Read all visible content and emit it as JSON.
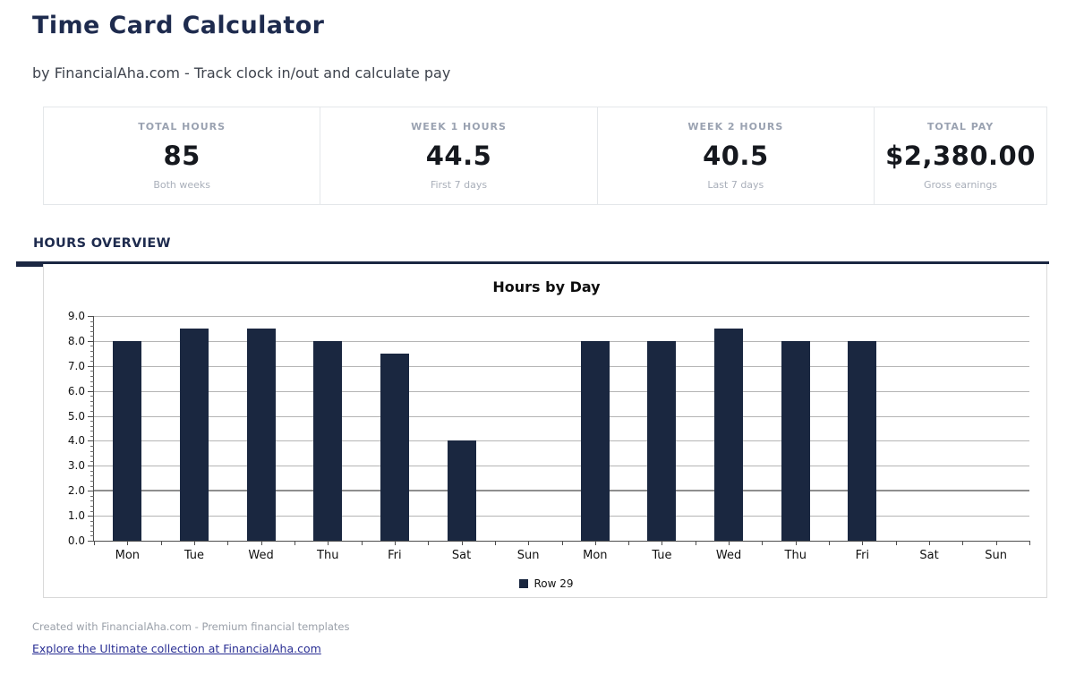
{
  "page": {
    "title": "Time Card Calculator",
    "subtitle": "by FinancialAha.com - Track clock in/out and calculate pay",
    "section_title": "HOURS OVERVIEW",
    "footer_note": "Created with FinancialAha.com - Premium financial templates",
    "footer_link": "Explore the Ultimate collection at FinancialAha.com"
  },
  "stats": [
    {
      "label": "TOTAL HOURS",
      "value": "85",
      "sub": "Both weeks"
    },
    {
      "label": "WEEK 1 HOURS",
      "value": "44.5",
      "sub": "First 7 days"
    },
    {
      "label": "WEEK 2 HOURS",
      "value": "40.5",
      "sub": "Last 7 days"
    },
    {
      "label": "TOTAL PAY",
      "value": "$2,380.00",
      "sub": "Gross earnings"
    }
  ],
  "chart_data": {
    "type": "bar",
    "title": "Hours by Day",
    "categories": [
      "Mon",
      "Tue",
      "Wed",
      "Thu",
      "Fri",
      "Sat",
      "Sun",
      "Mon",
      "Tue",
      "Wed",
      "Thu",
      "Fri",
      "Sat",
      "Sun"
    ],
    "values": [
      8,
      8.5,
      8.5,
      8,
      7.5,
      4,
      0,
      8,
      8,
      8.5,
      8,
      8,
      0,
      0
    ],
    "series_name": "Row 29",
    "xlabel": "",
    "ylabel": "",
    "ylim": [
      0,
      9
    ],
    "ytick_step": 1,
    "ytick_labels": [
      "0.0",
      "1.0",
      "2.0",
      "3.0",
      "4.0",
      "5.0",
      "6.0",
      "7.0",
      "8.0",
      "9.0"
    ],
    "minor_tick_step": 0.2,
    "grid": true,
    "emphasized_gridline": 2,
    "bar_color": "#1a2740",
    "legend_position": "bottom-center"
  },
  "colors": {
    "accent_navy": "#1b2742",
    "bar": "#1a2740",
    "link": "#2a2f94",
    "card_border": "#e4e7ea",
    "chart_border": "#d9d9d9",
    "gridline": "#b5b5b5"
  }
}
